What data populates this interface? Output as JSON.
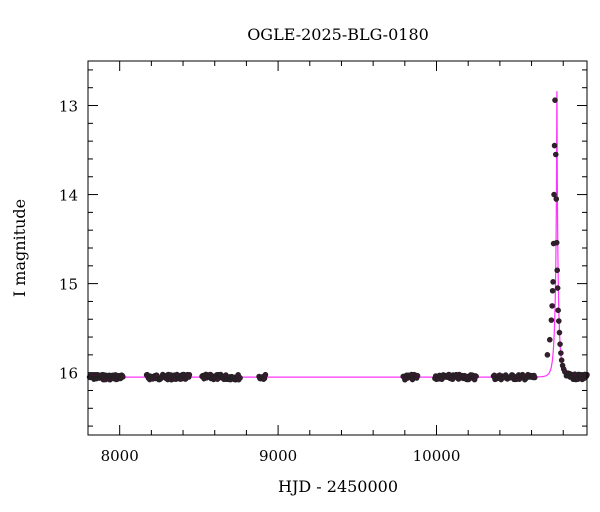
{
  "chart_data": {
    "type": "scatter",
    "title": "OGLE-2025-BLG-0180",
    "xlabel": "HJD - 2450000",
    "ylabel": "I magnitude",
    "xlim": [
      7800,
      10950
    ],
    "ylim": [
      16.7,
      12.5
    ],
    "y_inverted": true,
    "x_ticks_major": [
      8000,
      9000,
      10000
    ],
    "y_ticks_major": [
      13,
      14,
      15,
      16
    ],
    "x_minor_step": 200,
    "y_minor_step": 0.2,
    "grid": false,
    "colors": {
      "points": "#222222",
      "points_fill": "#3a1a30",
      "model": "#ff33ff",
      "axes": "#000000"
    },
    "model": {
      "baseline": 16.05,
      "t0": 10760,
      "u0": 0.052,
      "tE": 22
    },
    "baseline_segments": [
      {
        "x_start": 7810,
        "x_end": 8020,
        "n": 55
      },
      {
        "x_start": 8170,
        "x_end": 8440,
        "n": 70
      },
      {
        "x_start": 8520,
        "x_end": 8760,
        "n": 60
      },
      {
        "x_start": 8880,
        "x_end": 8920,
        "n": 8
      },
      {
        "x_start": 9790,
        "x_end": 9880,
        "n": 18
      },
      {
        "x_start": 9990,
        "x_end": 10250,
        "n": 55
      },
      {
        "x_start": 10360,
        "x_end": 10620,
        "n": 55
      },
      {
        "x_start": 10820,
        "x_end": 10950,
        "n": 40
      }
    ],
    "event_points": [
      {
        "x": 10700,
        "y": 15.8
      },
      {
        "x": 10715,
        "y": 15.63
      },
      {
        "x": 10725,
        "y": 15.41
      },
      {
        "x": 10730,
        "y": 15.25
      },
      {
        "x": 10733,
        "y": 15.08
      },
      {
        "x": 10736,
        "y": 14.98
      },
      {
        "x": 10739,
        "y": 14.55
      },
      {
        "x": 10742,
        "y": 14.0
      },
      {
        "x": 10745,
        "y": 13.45
      },
      {
        "x": 10748,
        "y": 12.94
      },
      {
        "x": 10753,
        "y": 13.55
      },
      {
        "x": 10756,
        "y": 14.05
      },
      {
        "x": 10759,
        "y": 14.54
      },
      {
        "x": 10762,
        "y": 14.85
      },
      {
        "x": 10765,
        "y": 15.05
      },
      {
        "x": 10768,
        "y": 15.3
      },
      {
        "x": 10772,
        "y": 15.42
      },
      {
        "x": 10776,
        "y": 15.55
      },
      {
        "x": 10780,
        "y": 15.68
      },
      {
        "x": 10785,
        "y": 15.78
      },
      {
        "x": 10790,
        "y": 15.86
      },
      {
        "x": 10796,
        "y": 15.92
      },
      {
        "x": 10803,
        "y": 15.96
      },
      {
        "x": 10810,
        "y": 15.99
      }
    ]
  }
}
